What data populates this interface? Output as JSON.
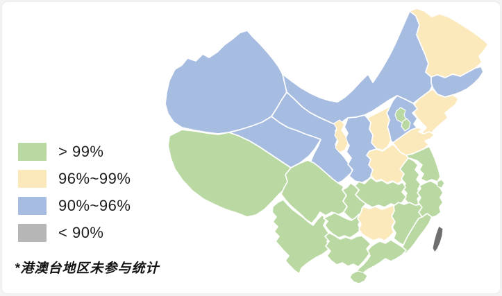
{
  "chart_data": {
    "type": "choropleth",
    "region_shown": "China provinces",
    "legend": [
      {
        "label": "> 99%",
        "color": "#b9d8a2"
      },
      {
        "label": "96%~99%",
        "color": "#fbe9bc"
      },
      {
        "label": "90%~96%",
        "color": "#a7bce1"
      },
      {
        "label": "< 90%",
        "color": "#b6b6b6"
      }
    ],
    "excluded_color": "#6f6f6f",
    "border_color": "#ffffff",
    "footnote": "*港澳台地区未参与统计",
    "regions": [
      {
        "id": "xinjiang",
        "value": "90%~96%"
      },
      {
        "id": "tibet",
        "value": "> 99%"
      },
      {
        "id": "qinghai",
        "value": "90%~96%"
      },
      {
        "id": "gansu",
        "value": "90%~96%"
      },
      {
        "id": "inner-mongolia",
        "value": "90%~96%"
      },
      {
        "id": "heilongjiang",
        "value": "96%~99%"
      },
      {
        "id": "jilin",
        "value": "90%~96%"
      },
      {
        "id": "liaoning",
        "value": "96%~99%"
      },
      {
        "id": "hebei",
        "value": "90%~96%"
      },
      {
        "id": "shanxi",
        "value": "96%~99%"
      },
      {
        "id": "shaanxi",
        "value": "90%~96%"
      },
      {
        "id": "ningxia",
        "value": "96%~99%"
      },
      {
        "id": "shandong",
        "value": "96%~99%"
      },
      {
        "id": "henan",
        "value": "96%~99%"
      },
      {
        "id": "jiangsu",
        "value": "> 99%"
      },
      {
        "id": "anhui",
        "value": "> 99%"
      },
      {
        "id": "hubei",
        "value": "> 99%"
      },
      {
        "id": "sichuan",
        "value": "> 99%"
      },
      {
        "id": "chongqing",
        "value": "> 99%"
      },
      {
        "id": "yunnan",
        "value": "> 99%"
      },
      {
        "id": "guizhou",
        "value": "> 99%"
      },
      {
        "id": "hunan",
        "value": "96%~99%"
      },
      {
        "id": "jiangxi",
        "value": "> 99%"
      },
      {
        "id": "zhejiang",
        "value": "> 99%"
      },
      {
        "id": "shanghai",
        "value": "> 99%"
      },
      {
        "id": "fujian",
        "value": "> 99%"
      },
      {
        "id": "guangdong",
        "value": "> 99%"
      },
      {
        "id": "guangxi",
        "value": "> 99%"
      },
      {
        "id": "hainan",
        "value": "> 99%"
      },
      {
        "id": "beijing",
        "value": "> 99%"
      },
      {
        "id": "tianjin",
        "value": "> 99%"
      },
      {
        "id": "taiwan",
        "value": "excluded"
      }
    ]
  }
}
